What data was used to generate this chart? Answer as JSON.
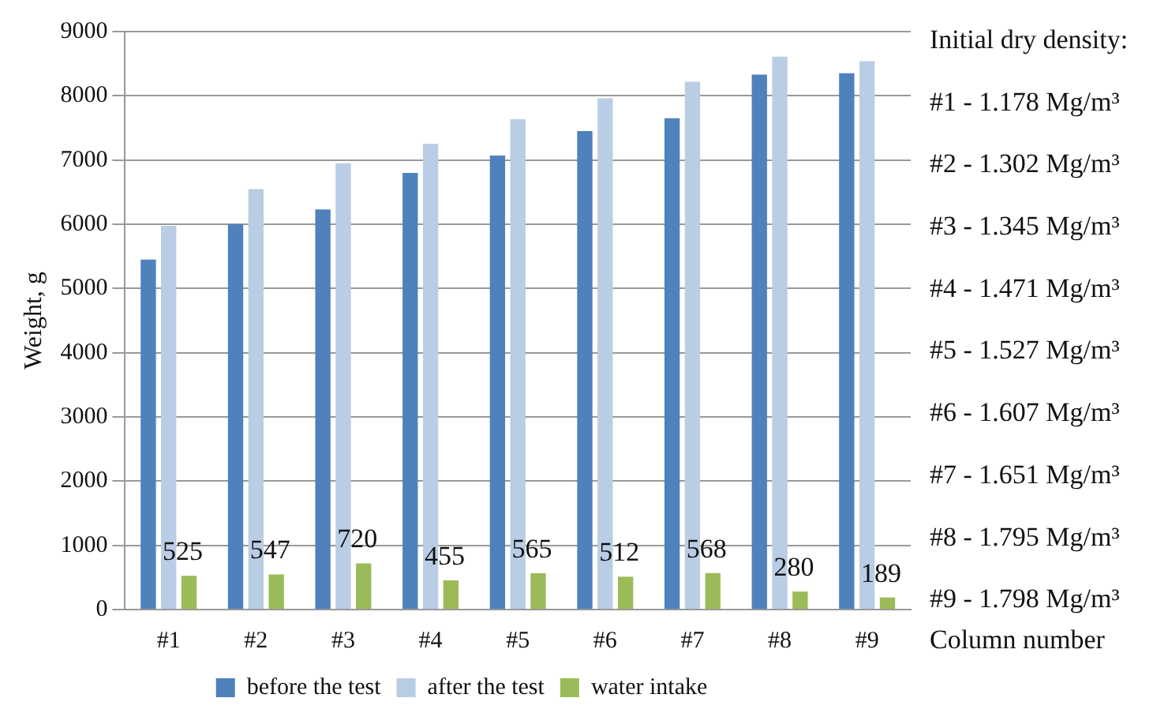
{
  "chart_data": {
    "type": "bar",
    "ylabel": "Weight, g",
    "xlabel": "Column number",
    "categories": [
      "#1",
      "#2",
      "#3",
      "#4",
      "#5",
      "#6",
      "#7",
      "#8",
      "#9"
    ],
    "series": [
      {
        "name": "before the test",
        "color": "#4f81bd",
        "values": [
          5450,
          6000,
          6230,
          6800,
          7070,
          7450,
          7650,
          8330,
          8350
        ]
      },
      {
        "name": "after the test",
        "color": "#b9cde5",
        "values": [
          5975,
          6547,
          6950,
          7255,
          7635,
          7962,
          8218,
          8610,
          8539
        ]
      },
      {
        "name": "water intake",
        "color": "#9bbb59",
        "values": [
          525,
          547,
          720,
          455,
          565,
          512,
          568,
          280,
          189
        ],
        "value_labels": [
          "525",
          "547",
          "720",
          "455",
          "565",
          "512",
          "568",
          "280",
          "189"
        ]
      }
    ],
    "ylim": [
      0,
      9000
    ],
    "yticks": [
      0,
      1000,
      2000,
      3000,
      4000,
      5000,
      6000,
      7000,
      8000,
      9000
    ],
    "grid": "y",
    "legend": "bottom",
    "annotations": [
      "Initial dry density:",
      "#1 - 1.178 Mg/m³",
      "#2 - 1.302 Mg/m³",
      "#3 - 1.345 Mg/m³",
      "#4 - 1.471 Mg/m³",
      "#5 - 1.527 Mg/m³",
      "#6 - 1.607 Mg/m³",
      "#7 - 1.651 Mg/m³",
      "#8 - 1.795 Mg/m³",
      "#9 - 1.798 Mg/m³"
    ]
  }
}
